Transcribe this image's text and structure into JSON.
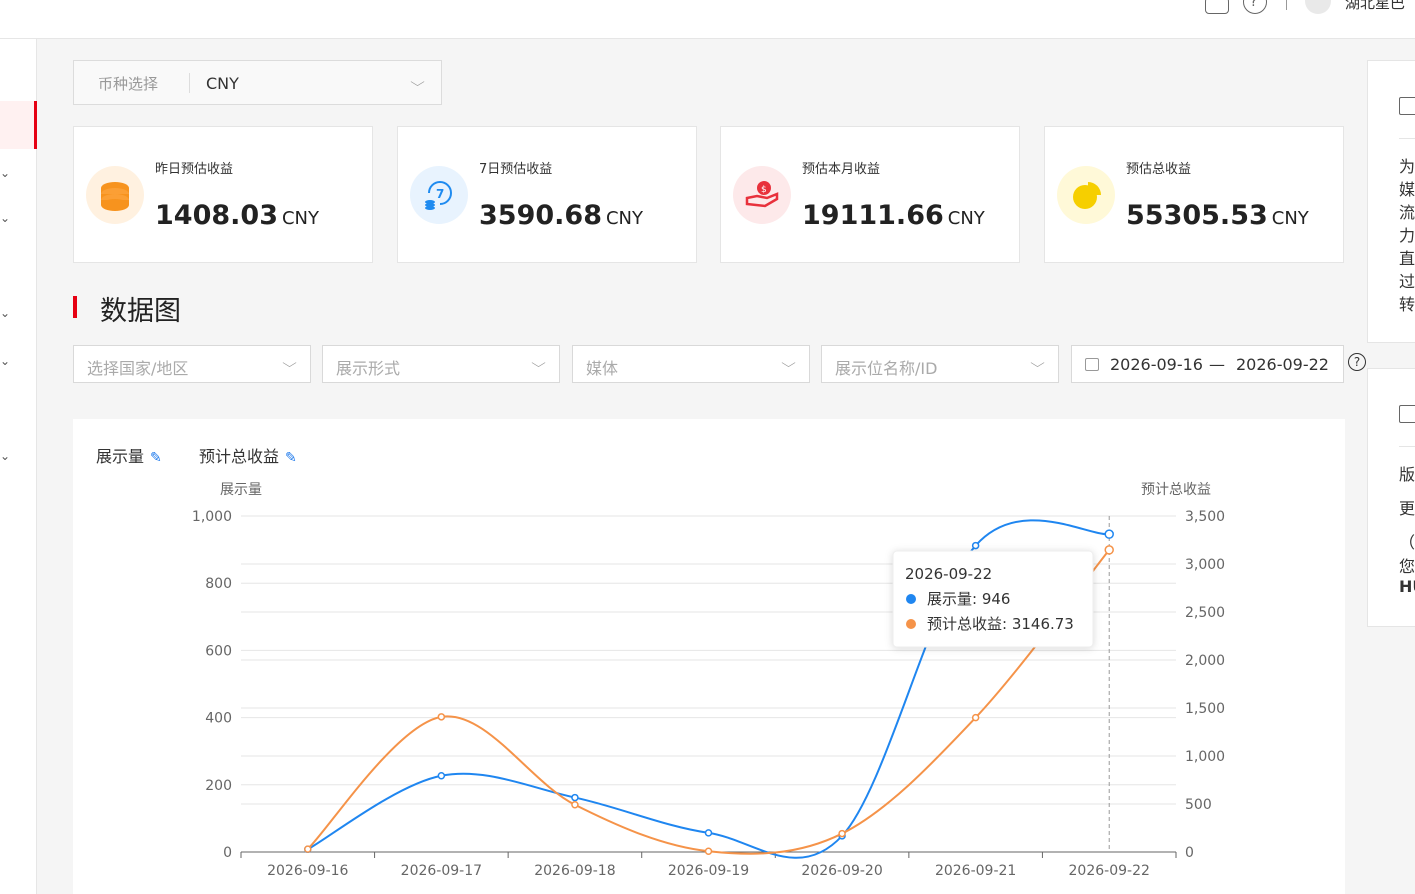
{
  "header": {
    "org_name": "湖北星巴",
    "icons": [
      "headset-icon",
      "help-icon",
      "avatar"
    ]
  },
  "currency": {
    "label": "币种选择",
    "value": "CNY"
  },
  "cards": [
    {
      "title": "昨日预估收益",
      "value": "1408.03",
      "unit": "CNY",
      "icon": "coins-icon",
      "color": "#f7931e"
    },
    {
      "title": "7日预估收益",
      "value": "3590.68",
      "unit": "CNY",
      "icon": "seven-day-icon",
      "color": "#1f8bf0"
    },
    {
      "title": "预估本月收益",
      "value": "19111.66",
      "unit": "CNY",
      "icon": "money-hand-icon",
      "color": "#e8313c"
    },
    {
      "title": "预估总收益",
      "value": "55305.53",
      "unit": "CNY",
      "icon": "pie-icon",
      "color": "#f6cf00"
    }
  ],
  "section": {
    "title": "数据图"
  },
  "filters": [
    {
      "placeholder": "选择国家/地区"
    },
    {
      "placeholder": "展示形式"
    },
    {
      "placeholder": "媒体"
    },
    {
      "placeholder": "展示位名称/ID"
    }
  ],
  "date_range": {
    "start": "2026-09-16",
    "separator": "—",
    "end": "2026-09-22"
  },
  "help_mark": "?",
  "metrics": {
    "left": "展示量",
    "right": "预计总收益"
  },
  "right_panel": {
    "top_lines": [
      "为",
      "媒",
      "流",
      "力",
      "直",
      "过",
      "转"
    ],
    "bottom_lines": [
      "版",
      "更",
      "（",
      "您",
      "HU"
    ]
  },
  "chart_data": {
    "type": "line",
    "x": [
      "2026-09-16",
      "2026-09-17",
      "2026-09-18",
      "2026-09-19",
      "2026-09-20",
      "2026-09-21",
      "2026-09-22"
    ],
    "y_left": {
      "label": "展示量",
      "ticks": [
        "0",
        "200",
        "400",
        "600",
        "800",
        "1,000"
      ],
      "range": [
        0,
        1000
      ]
    },
    "y_right": {
      "label": "预计总收益",
      "ticks": [
        "0",
        "500",
        "1,000",
        "1,500",
        "2,000",
        "2,500",
        "3,000",
        "3,500"
      ],
      "range": [
        0,
        3500
      ]
    },
    "series": [
      {
        "name": "展示量",
        "axis": "left",
        "color": "#1f86f0",
        "values": [
          8,
          227,
          162,
          57,
          48,
          912,
          946
        ]
      },
      {
        "name": "预计总收益",
        "axis": "right",
        "color": "#f59349",
        "values": [
          30,
          1408,
          492,
          8,
          192,
          1400,
          3146.73
        ]
      }
    ],
    "tooltip": {
      "date": "2026-09-22",
      "rows": [
        {
          "name": "展示量",
          "value": "946"
        },
        {
          "name": "预计总收益",
          "value": "3146.73"
        }
      ]
    },
    "grid": true
  }
}
